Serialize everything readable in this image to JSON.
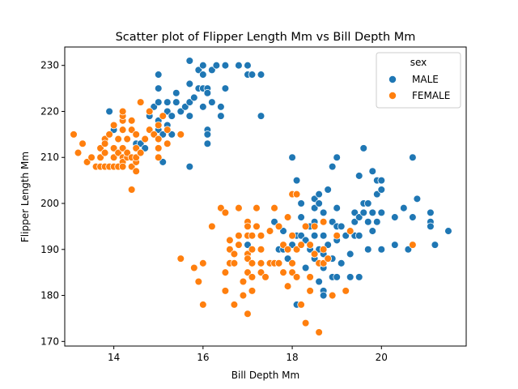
{
  "chart_data": {
    "type": "scatter",
    "title": "Scatter plot of Flipper Length Mm vs Bill Depth Mm",
    "xlabel": "Bill Depth Mm",
    "ylabel": "Flipper Length Mm",
    "xlim": [
      12.9,
      21.9
    ],
    "ylim": [
      169,
      234
    ],
    "x_ticks": [
      14,
      16,
      18,
      20
    ],
    "y_ticks": [
      170,
      180,
      190,
      200,
      210,
      220,
      230
    ],
    "grid": false,
    "legend": {
      "title": "sex",
      "placement": "top-right"
    },
    "series": [
      {
        "name": "MALE",
        "color": "#1f77b4",
        "points": [
          [
            13.9,
            220
          ],
          [
            14.0,
            216
          ],
          [
            14.5,
            213
          ],
          [
            14.6,
            213
          ],
          [
            14.7,
            212
          ],
          [
            14.8,
            219
          ],
          [
            14.9,
            221
          ],
          [
            15.0,
            216
          ],
          [
            15.0,
            218
          ],
          [
            15.0,
            222
          ],
          [
            15.0,
            225
          ],
          [
            15.0,
            228
          ],
          [
            15.1,
            215
          ],
          [
            15.1,
            209
          ],
          [
            15.2,
            217
          ],
          [
            15.2,
            220
          ],
          [
            15.2,
            222
          ],
          [
            15.3,
            219
          ],
          [
            15.3,
            215
          ],
          [
            15.4,
            222
          ],
          [
            15.4,
            224
          ],
          [
            15.5,
            220
          ],
          [
            15.6,
            221
          ],
          [
            15.7,
            208
          ],
          [
            15.7,
            219
          ],
          [
            15.7,
            222
          ],
          [
            15.7,
            226
          ],
          [
            15.7,
            231
          ],
          [
            15.8,
            223
          ],
          [
            15.9,
            225
          ],
          [
            15.9,
            229
          ],
          [
            16.0,
            230
          ],
          [
            16.0,
            228
          ],
          [
            16.0,
            221
          ],
          [
            16.0,
            225
          ],
          [
            16.1,
            225
          ],
          [
            16.1,
            224
          ],
          [
            16.1,
            216
          ],
          [
            16.1,
            215
          ],
          [
            16.1,
            213
          ],
          [
            16.2,
            222
          ],
          [
            16.2,
            229
          ],
          [
            16.3,
            230
          ],
          [
            16.4,
            221
          ],
          [
            16.4,
            219
          ],
          [
            16.5,
            225
          ],
          [
            16.5,
            230
          ],
          [
            16.8,
            230
          ],
          [
            17.0,
            230
          ],
          [
            17.0,
            228
          ],
          [
            17.1,
            228
          ],
          [
            17.3,
            228
          ],
          [
            17.3,
            219
          ],
          [
            17.0,
            191
          ],
          [
            17.5,
            187
          ],
          [
            17.6,
            196
          ],
          [
            17.7,
            190
          ],
          [
            17.8,
            194
          ],
          [
            17.8,
            190
          ],
          [
            17.9,
            188
          ],
          [
            18.0,
            210
          ],
          [
            18.0,
            191
          ],
          [
            18.1,
            205
          ],
          [
            18.1,
            193
          ],
          [
            18.1,
            178
          ],
          [
            18.2,
            200
          ],
          [
            18.2,
            197
          ],
          [
            18.2,
            193
          ],
          [
            18.3,
            192
          ],
          [
            18.3,
            186
          ],
          [
            18.4,
            195
          ],
          [
            18.4,
            190
          ],
          [
            18.5,
            201
          ],
          [
            18.5,
            199
          ],
          [
            18.5,
            196
          ],
          [
            18.5,
            193
          ],
          [
            18.5,
            188
          ],
          [
            18.6,
            202
          ],
          [
            18.6,
            200
          ],
          [
            18.6,
            190
          ],
          [
            18.6,
            183
          ],
          [
            18.7,
            198
          ],
          [
            18.7,
            193
          ],
          [
            18.7,
            189
          ],
          [
            18.7,
            186
          ],
          [
            18.7,
            181
          ],
          [
            18.7,
            180
          ],
          [
            18.8,
            191
          ],
          [
            18.8,
            203
          ],
          [
            18.9,
            208
          ],
          [
            18.9,
            196
          ],
          [
            18.9,
            188
          ],
          [
            18.9,
            184
          ],
          [
            18.9,
            180
          ],
          [
            19.0,
            210
          ],
          [
            19.0,
            199
          ],
          [
            19.0,
            195
          ],
          [
            19.0,
            192
          ],
          [
            19.0,
            184
          ],
          [
            19.1,
            195
          ],
          [
            19.1,
            187
          ],
          [
            19.2,
            193
          ],
          [
            19.3,
            189
          ],
          [
            19.3,
            184
          ],
          [
            19.4,
            198
          ],
          [
            19.4,
            196
          ],
          [
            19.4,
            193
          ],
          [
            19.5,
            206
          ],
          [
            19.5,
            197
          ],
          [
            19.5,
            184
          ],
          [
            19.5,
            193
          ],
          [
            19.6,
            200
          ],
          [
            19.6,
            212
          ],
          [
            19.6,
            198
          ],
          [
            19.7,
            200
          ],
          [
            19.7,
            190
          ],
          [
            19.7,
            196
          ],
          [
            19.8,
            207
          ],
          [
            19.8,
            198
          ],
          [
            19.8,
            194
          ],
          [
            19.9,
            205
          ],
          [
            19.9,
            202
          ],
          [
            19.9,
            196
          ],
          [
            20.0,
            205
          ],
          [
            20.0,
            203
          ],
          [
            20.0,
            190
          ],
          [
            20.0,
            198
          ],
          [
            20.3,
            197
          ],
          [
            20.3,
            191
          ],
          [
            20.5,
            199
          ],
          [
            20.6,
            190
          ],
          [
            20.7,
            210
          ],
          [
            20.7,
            197
          ],
          [
            20.8,
            201
          ],
          [
            21.1,
            198
          ],
          [
            21.1,
            196
          ],
          [
            21.1,
            195
          ],
          [
            21.2,
            191
          ],
          [
            21.5,
            194
          ]
        ]
      },
      {
        "name": "FEMALE",
        "color": "#ff7f0e",
        "points": [
          [
            13.1,
            215
          ],
          [
            13.2,
            211
          ],
          [
            13.3,
            213
          ],
          [
            13.4,
            209
          ],
          [
            13.5,
            210
          ],
          [
            13.6,
            208
          ],
          [
            13.7,
            208
          ],
          [
            13.7,
            210
          ],
          [
            13.7,
            212
          ],
          [
            13.8,
            208
          ],
          [
            13.8,
            211
          ],
          [
            13.8,
            214
          ],
          [
            13.8,
            213
          ],
          [
            13.9,
            208
          ],
          [
            13.9,
            215
          ],
          [
            14.0,
            208
          ],
          [
            14.0,
            210
          ],
          [
            14.0,
            212
          ],
          [
            14.0,
            217
          ],
          [
            14.1,
            211
          ],
          [
            14.1,
            208
          ],
          [
            14.1,
            214
          ],
          [
            14.2,
            210
          ],
          [
            14.2,
            209
          ],
          [
            14.2,
            208
          ],
          [
            14.2,
            212
          ],
          [
            14.2,
            216
          ],
          [
            14.2,
            218
          ],
          [
            14.2,
            219
          ],
          [
            14.2,
            220
          ],
          [
            14.3,
            210
          ],
          [
            14.3,
            211
          ],
          [
            14.3,
            214
          ],
          [
            14.4,
            203
          ],
          [
            14.4,
            208
          ],
          [
            14.4,
            210
          ],
          [
            14.4,
            216
          ],
          [
            14.4,
            218
          ],
          [
            14.5,
            207
          ],
          [
            14.5,
            209
          ],
          [
            14.5,
            210
          ],
          [
            14.5,
            215
          ],
          [
            14.5,
            212
          ],
          [
            14.6,
            211
          ],
          [
            14.6,
            211
          ],
          [
            14.6,
            222
          ],
          [
            14.7,
            214
          ],
          [
            14.8,
            216
          ],
          [
            14.8,
            220
          ],
          [
            14.9,
            215
          ],
          [
            15.0,
            210
          ],
          [
            15.0,
            212
          ],
          [
            15.0,
            214
          ],
          [
            15.0,
            217
          ],
          [
            15.1,
            219
          ],
          [
            15.2,
            213
          ],
          [
            15.2,
            216
          ],
          [
            15.5,
            215
          ],
          [
            15.5,
            188
          ],
          [
            15.8,
            186
          ],
          [
            15.9,
            183
          ],
          [
            16.0,
            187
          ],
          [
            16.0,
            178
          ],
          [
            16.2,
            195
          ],
          [
            16.4,
            199
          ],
          [
            16.5,
            198
          ],
          [
            16.5,
            185
          ],
          [
            16.5,
            181
          ],
          [
            16.6,
            192
          ],
          [
            16.6,
            190
          ],
          [
            16.6,
            187
          ],
          [
            16.7,
            189
          ],
          [
            16.7,
            178
          ],
          [
            16.7,
            187
          ],
          [
            16.8,
            193
          ],
          [
            16.8,
            191
          ],
          [
            16.8,
            199
          ],
          [
            16.9,
            183
          ],
          [
            16.9,
            180
          ],
          [
            17.0,
            196
          ],
          [
            17.0,
            195
          ],
          [
            17.0,
            193
          ],
          [
            17.0,
            189
          ],
          [
            17.0,
            188
          ],
          [
            17.0,
            185
          ],
          [
            17.0,
            176
          ],
          [
            17.1,
            190
          ],
          [
            17.1,
            193
          ],
          [
            17.1,
            187
          ],
          [
            17.1,
            184
          ],
          [
            17.1,
            181
          ],
          [
            17.2,
            199
          ],
          [
            17.2,
            195
          ],
          [
            17.3,
            193
          ],
          [
            17.3,
            190
          ],
          [
            17.3,
            187
          ],
          [
            17.3,
            185
          ],
          [
            17.4,
            184
          ],
          [
            17.5,
            187
          ],
          [
            17.5,
            194
          ],
          [
            17.6,
            199
          ],
          [
            17.6,
            187
          ],
          [
            17.7,
            195
          ],
          [
            17.7,
            187
          ],
          [
            17.8,
            191
          ],
          [
            17.8,
            185
          ],
          [
            17.9,
            190
          ],
          [
            17.9,
            182
          ],
          [
            17.9,
            197
          ],
          [
            18.0,
            185
          ],
          [
            18.0,
            187
          ],
          [
            18.0,
            193
          ],
          [
            18.0,
            202
          ],
          [
            18.1,
            202
          ],
          [
            18.1,
            190
          ],
          [
            18.1,
            184
          ],
          [
            18.2,
            191
          ],
          [
            18.2,
            178
          ],
          [
            18.3,
            195
          ],
          [
            18.3,
            174
          ],
          [
            18.4,
            184
          ],
          [
            18.4,
            191
          ],
          [
            18.4,
            181
          ],
          [
            18.5,
            195
          ],
          [
            18.5,
            189
          ],
          [
            18.6,
            187
          ],
          [
            18.6,
            172
          ],
          [
            18.7,
            196
          ],
          [
            18.7,
            190
          ],
          [
            18.7,
            187
          ],
          [
            18.8,
            188
          ],
          [
            18.9,
            180
          ],
          [
            19.0,
            193
          ],
          [
            19.2,
            181
          ],
          [
            19.3,
            194
          ],
          [
            20.7,
            191
          ]
        ]
      }
    ]
  }
}
